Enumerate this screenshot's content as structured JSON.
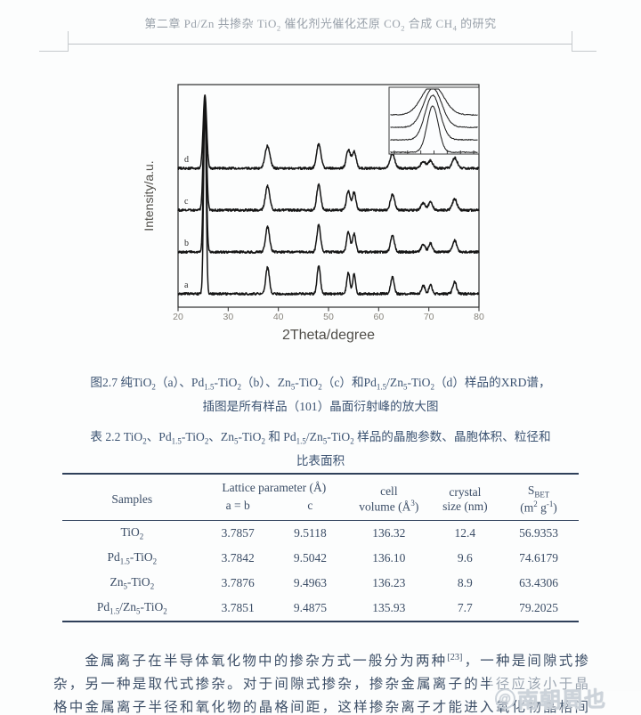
{
  "header": {
    "title": "第二章  Pd/Zn 共掺杂 TiO<sub>2</sub> 催化剂光催化还原 CO<sub>2</sub> 合成 CH<sub>4</sub> 的研究"
  },
  "figure": {
    "caption_line1": "图2.7 纯TiO<sub>2</sub>（a）、Pd<sub>1.5</sub>-TiO<sub>2</sub>（b）、Zn<sub>5</sub>-TiO<sub>2</sub>（c）和Pd<sub>1.5</sub>/Zn<sub>5</sub>-TiO<sub>2</sub>（d）样品的XRD谱，",
    "caption_line2": "插图是所有样品（101）晶面衍射峰的放大图"
  },
  "chart_data": {
    "type": "line",
    "title": "",
    "xlabel": "2Theta/degree",
    "ylabel": "Intensity/a.u.",
    "xlim": [
      20,
      80
    ],
    "xticks": [
      20,
      30,
      40,
      50,
      60,
      70,
      80
    ],
    "grid": false,
    "legend": "curve labels a-d stacked left of main (101) peak",
    "series": [
      {
        "label": "a",
        "sample": "TiO2",
        "broaden": 1.0
      },
      {
        "label": "b",
        "sample": "Pd1.5-TiO2",
        "broaden": 1.12
      },
      {
        "label": "c",
        "sample": "Zn5-TiO2",
        "broaden": 1.22
      },
      {
        "label": "d",
        "sample": "Pd1.5/Zn5-TiO2",
        "broaden": 1.35
      }
    ],
    "peaks_2theta": [
      {
        "x": 25.35,
        "h": 1.0,
        "w": 0.36
      },
      {
        "x": 37.85,
        "h": 0.13,
        "w": 0.5
      },
      {
        "x": 48.05,
        "h": 0.14,
        "w": 0.45
      },
      {
        "x": 53.95,
        "h": 0.105,
        "w": 0.42
      },
      {
        "x": 55.1,
        "h": 0.095,
        "w": 0.42
      },
      {
        "x": 62.75,
        "h": 0.085,
        "w": 0.48
      },
      {
        "x": 68.9,
        "h": 0.04,
        "w": 0.5
      },
      {
        "x": 70.35,
        "h": 0.045,
        "w": 0.45
      },
      {
        "x": 75.15,
        "h": 0.06,
        "w": 0.52
      }
    ],
    "inset": {
      "note": "magnified (101) diffraction peak of all samples",
      "xrange": [
        23.8,
        27.2
      ],
      "peak_center": 25.45,
      "widths_deg": [
        0.3,
        0.4,
        0.48,
        0.58
      ],
      "rel_heights": [
        52,
        50,
        44,
        34
      ]
    }
  },
  "table": {
    "caption_line1": "表 2.2 TiO<sub>2</sub>、Pd<sub>1.5</sub>-TiO<sub>2</sub>、Zn<sub>5</sub>-TiO<sub>2</sub> 和 Pd<sub>1.5</sub>/Zn<sub>5</sub>-TiO<sub>2</sub> 样品的晶胞参数、晶胞体积、粒径和",
    "caption_line2": "比表面积",
    "headers": {
      "samples": "Samples",
      "lattice": "Lattice parameter (Å)",
      "ab": "a = b",
      "c": "c",
      "cell_volume": "cell<br>volume (Å<sup>3</sup>)",
      "crystal_size": "crystal<br>size (nm)",
      "sbet": "S<sub>BET</sub><br>(m<sup>2</sup> g<sup>-1</sup>)"
    },
    "rows": [
      {
        "name": "TiO<sub>2</sub>",
        "ab": "3.7857",
        "c": "9.5118",
        "vol": "136.32",
        "size": "12.4",
        "sbet": "56.9353"
      },
      {
        "name": "Pd<sub>1.5</sub>-TiO<sub>2</sub>",
        "ab": "3.7842",
        "c": "9.5042",
        "vol": "136.10",
        "size": "9.6",
        "sbet": "74.6179"
      },
      {
        "name": "Zn<sub>5</sub>-TiO<sub>2</sub>",
        "ab": "3.7876",
        "c": "9.4963",
        "vol": "136.23",
        "size": "8.9",
        "sbet": "63.4306"
      },
      {
        "name": "Pd<sub>1.5</sub>/Zn<sub>5</sub>-TiO<sub>2</sub>",
        "ab": "3.7851",
        "c": "9.4875",
        "vol": "135.93",
        "size": "7.7",
        "sbet": "79.2025"
      }
    ]
  },
  "body": {
    "line1": "　　金属离子在半导体氧化物中的掺杂方式一般分为两种<sup>[23]</sup>，一种是间隙式掺",
    "line2": "杂，另一种是取代式掺杂。对于间隙式掺杂，掺杂金属离子的半径应该小于晶",
    "line3": "格中金属离子半径和氧化物的晶格间距，这样掺杂离子才能进入氧化物晶格间"
  },
  "watermark": {
    "at_symbol": "@",
    "text": "南朝周也"
  }
}
